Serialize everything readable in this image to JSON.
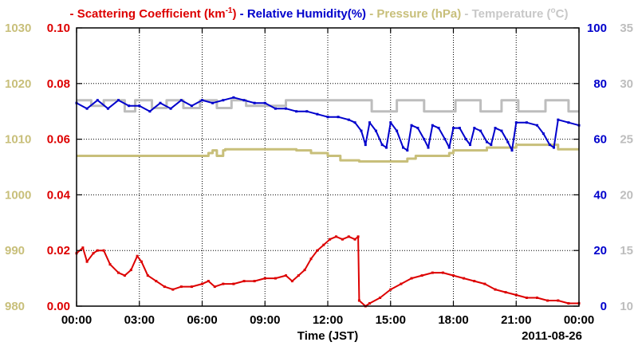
{
  "chart_data": {
    "type": "line",
    "date": "2011-08-26",
    "xlabel": "Time (JST)",
    "x_ticks": [
      "00:00",
      "03:00",
      "06:00",
      "09:00",
      "12:00",
      "15:00",
      "18:00",
      "21:00",
      "00:00"
    ],
    "x_range_hours": [
      0,
      24
    ],
    "grid": true,
    "legend_placement": "top",
    "axes": {
      "scattering": {
        "ticks": [
          "0.00",
          "0.02",
          "0.04",
          "0.06",
          "0.08",
          "0.10"
        ],
        "range": [
          0,
          0.1
        ],
        "color": "#dd0000",
        "side": "left-inner"
      },
      "pressure": {
        "ticks": [
          "980",
          "990",
          "1000",
          "1010",
          "1020",
          "1030"
        ],
        "range": [
          980,
          1030
        ],
        "color": "#c8bf7a",
        "side": "left-outer"
      },
      "humidity": {
        "ticks": [
          "0",
          "20",
          "40",
          "60",
          "80",
          "100"
        ],
        "range": [
          0,
          100
        ],
        "color": "#0000cc",
        "side": "right-inner"
      },
      "temperature": {
        "ticks": [
          "10",
          "15",
          "20",
          "25",
          "30",
          "35"
        ],
        "range": [
          10,
          35
        ],
        "color": "#bdbdbd",
        "side": "right-outer"
      }
    },
    "legend": [
      {
        "text": "Scattering Coefficient (km",
        "sup": "-1",
        "tail": ")",
        "color": "#dd0000"
      },
      {
        "text": "Relative Humidity(%)",
        "color": "#0000cc"
      },
      {
        "text": "Pressure (hPa)",
        "color": "#c8bf7a"
      },
      {
        "text": "Temperature (",
        "sup": "o",
        "tail": "C)",
        "color": "#c8c8c8"
      }
    ],
    "series": [
      {
        "name": "Scattering Coefficient",
        "axis": "scattering",
        "x": [
          0,
          0.3,
          0.5,
          0.8,
          1,
          1.3,
          1.6,
          2,
          2.3,
          2.6,
          2.9,
          3.1,
          3.4,
          3.8,
          4.2,
          4.6,
          5,
          5.5,
          6,
          6.3,
          6.6,
          7,
          7.5,
          8,
          8.5,
          9,
          9.5,
          10,
          10.3,
          10.6,
          10.9,
          11.2,
          11.5,
          11.8,
          12.1,
          12.4,
          12.7,
          13,
          13.3,
          13.45,
          13.5,
          13.8,
          14,
          14.5,
          15,
          15.5,
          16,
          16.5,
          17,
          17.5,
          18,
          18.5,
          19,
          19.5,
          20,
          20.5,
          21,
          21.5,
          22,
          22.5,
          23,
          23.5,
          24
        ],
        "y": [
          0.019,
          0.021,
          0.016,
          0.019,
          0.02,
          0.02,
          0.015,
          0.012,
          0.011,
          0.013,
          0.018,
          0.016,
          0.011,
          0.009,
          0.007,
          0.006,
          0.007,
          0.007,
          0.008,
          0.009,
          0.007,
          0.008,
          0.008,
          0.009,
          0.009,
          0.01,
          0.01,
          0.011,
          0.009,
          0.011,
          0.013,
          0.017,
          0.02,
          0.022,
          0.024,
          0.025,
          0.024,
          0.025,
          0.024,
          0.025,
          0.002,
          0.0,
          0.001,
          0.003,
          0.006,
          0.008,
          0.01,
          0.011,
          0.012,
          0.012,
          0.011,
          0.01,
          0.009,
          0.008,
          0.006,
          0.005,
          0.004,
          0.003,
          0.003,
          0.002,
          0.002,
          0.001,
          0.001
        ]
      },
      {
        "name": "Relative Humidity",
        "axis": "humidity",
        "x": [
          0,
          0.5,
          1,
          1.5,
          2,
          2.5,
          3,
          3.5,
          4,
          4.5,
          5,
          5.5,
          6,
          6.5,
          7,
          7.5,
          8,
          8.5,
          9,
          9.5,
          10,
          10.5,
          11,
          11.5,
          12,
          12.5,
          13,
          13.3,
          13.6,
          13.8,
          14,
          14.3,
          14.6,
          14.8,
          15,
          15.3,
          15.6,
          15.8,
          16,
          16.3,
          16.6,
          16.8,
          17,
          17.3,
          17.6,
          17.8,
          18,
          18.3,
          18.6,
          18.8,
          19,
          19.3,
          19.6,
          19.8,
          20,
          20.3,
          20.6,
          20.8,
          21,
          21.5,
          22,
          22.3,
          22.6,
          22.8,
          23,
          23.5,
          24
        ],
        "y": [
          73,
          71,
          74,
          71,
          74,
          72,
          72,
          70,
          73,
          71,
          74,
          72,
          74,
          73,
          74,
          75,
          74,
          73,
          73,
          71,
          71,
          70,
          70,
          69,
          68,
          68,
          67,
          66,
          63,
          58,
          66,
          63,
          58,
          57,
          66,
          63,
          57,
          56,
          65,
          64,
          60,
          57,
          65,
          64,
          60,
          57,
          64,
          64,
          60,
          58,
          64,
          63,
          59,
          58,
          64,
          63,
          59,
          56,
          66,
          66,
          65,
          62,
          58,
          57,
          67,
          66,
          65
        ]
      },
      {
        "name": "Pressure",
        "axis": "pressure",
        "x": [
          0,
          6.2,
          6.3,
          6.5,
          6.7,
          7.0,
          7.1,
          10.5,
          11.2,
          12.0,
          12.6,
          13.5,
          14.5,
          15.8,
          16.2,
          17.5,
          17.8,
          18.0,
          18.5,
          19.5,
          19.6,
          20.0,
          21.0,
          22.5,
          23.0,
          24.0
        ],
        "y": [
          1007.0,
          1007.0,
          1007.5,
          1008.0,
          1007.0,
          1008.0,
          1008.2,
          1008.0,
          1007.5,
          1007.0,
          1006.2,
          1006.0,
          1006.0,
          1006.5,
          1007.0,
          1007.0,
          1007.5,
          1008.0,
          1008.0,
          1008.0,
          1008.5,
          1008.5,
          1009.0,
          1009.0,
          1008.2,
          1008.2
        ]
      },
      {
        "name": "Temperature",
        "axis": "temperature",
        "x": [
          0,
          0.6,
          0.7,
          1.2,
          1.3,
          2.2,
          2.3,
          2.7,
          2.8,
          3.5,
          3.6,
          4.2,
          4.3,
          5.0,
          5.1,
          5.8,
          5.9,
          6.6,
          6.7,
          7.3,
          7.4,
          8.0,
          8.1,
          9.9,
          10.0,
          14.0,
          14.1,
          15.2,
          15.3,
          16.5,
          16.6,
          18.0,
          18.1,
          19.2,
          19.3,
          20.2,
          20.3,
          21.0,
          21.1,
          22.3,
          22.4,
          23.4,
          23.5,
          24.0
        ],
        "y": [
          28.5,
          28.5,
          28.0,
          28.0,
          28.5,
          28.5,
          27.5,
          27.5,
          28.5,
          28.5,
          27.8,
          27.8,
          28.5,
          28.5,
          27.8,
          27.8,
          28.5,
          28.5,
          27.8,
          27.8,
          28.5,
          28.5,
          28.0,
          28.0,
          28.5,
          28.5,
          27.5,
          27.5,
          28.5,
          28.5,
          27.5,
          27.5,
          28.5,
          28.5,
          27.5,
          27.5,
          28.5,
          28.5,
          27.5,
          27.5,
          28.5,
          28.5,
          27.5,
          27.5
        ]
      }
    ]
  }
}
